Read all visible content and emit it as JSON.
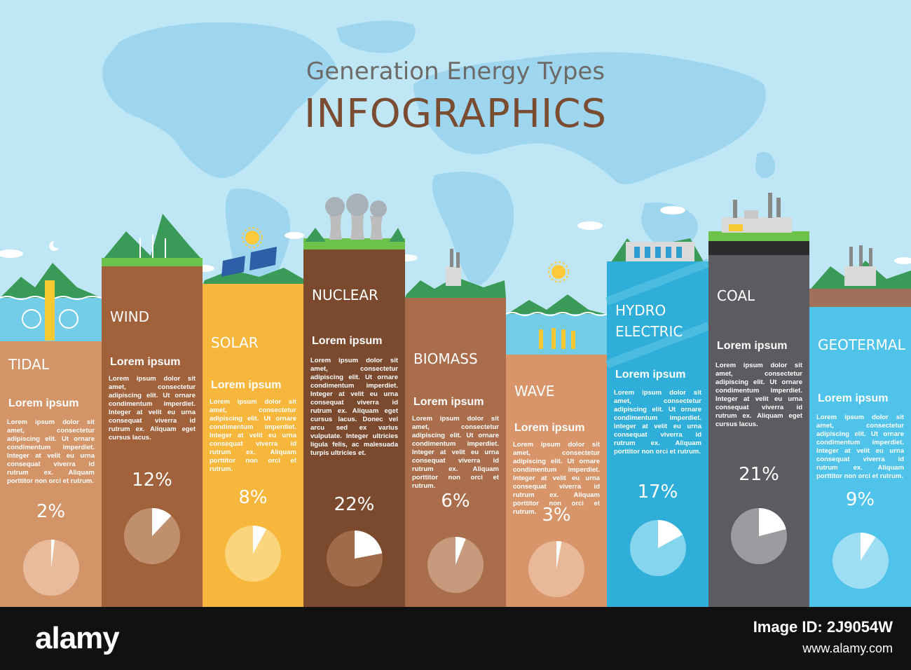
{
  "header": {
    "subtitle": "Generation Energy Types",
    "title": "INFOGRAPHICS"
  },
  "colors": {
    "sky": "#bfe6f5",
    "map": "#9ed6ef",
    "tidal": "#d39468",
    "wind": "#a1613b",
    "solar": "#f6b73c",
    "nuclear": "#7b4a2e",
    "biomass": "#a96d4b",
    "wave": "#d8956a",
    "hydro": "#2eaed8",
    "coal": "#5c5b60",
    "geothermal": "#4fc3ea"
  },
  "columns": [
    {
      "id": "tidal",
      "name": "TIDAL",
      "subtitle": "Lorem ipsum",
      "text": "Lorem ipsum dolor sit amet, consectetur adipiscing elit. Ut ornare condimentum imperdiet. Integer at velit eu urna consequat viverra id rutrum ex. Aliquam porttitor non orci et rutrum.",
      "percent_label": "2%",
      "percent": 2
    },
    {
      "id": "wind",
      "name": "WIND",
      "subtitle": "Lorem ipsum",
      "text": "Lorem ipsum dolor sit amet, consectetur adipiscing elit. Ut ornare condimentum imperdiet. Integer at velit eu urna consequat viverra id rutrum ex. Aliquam eget cursus lacus.",
      "percent_label": "12%",
      "percent": 12
    },
    {
      "id": "solar",
      "name": "SOLAR",
      "subtitle": "Lorem ipsum",
      "text": "Lorem ipsum dolor sit amet, consectetur adipiscing elit. Ut ornare condimentum imperdiet. Integer at velit eu urna consequat viverra id rutrum ex. Aliquam porttitor non orci et rutrum.",
      "percent_label": "8%",
      "percent": 8
    },
    {
      "id": "nuclear",
      "name": "NUCLEAR",
      "subtitle": "Lorem ipsum",
      "text": "Lorem ipsum dolor sit amet, consectetur adipiscing elit. Ut ornare condimentum imperdiet. Integer at velit eu urna consequat viverra id rutrum ex. Aliquam eget cursus lacus. Donec vel arcu sed ex varius vulputate. Integer ultricies ligula felis, ac malesuada turpis ultricies et.",
      "percent_label": "22%",
      "percent": 22
    },
    {
      "id": "biomass",
      "name": "BIOMASS",
      "subtitle": "Lorem ipsum",
      "text": "Lorem ipsum dolor sit amet, consectetur adipiscing elit. Ut ornare condimentum imperdiet. Integer at velit eu urna consequat viverra id rutrum ex. Aliquam porttitor non orci et rutrum.",
      "percent_label": "6%",
      "percent": 6
    },
    {
      "id": "wave",
      "name": "WAVE",
      "subtitle": "Lorem ipsum",
      "text": "Lorem ipsum dolor sit amet, consectetur adipiscing elit. Ut ornare condimentum imperdiet. Integer at velit eu urna consequat viverra id rutrum ex. Aliquam porttitor non orci et rutrum.",
      "percent_label": "3%",
      "percent": 3
    },
    {
      "id": "hydro",
      "name": "HYDRO\nELECTRIC",
      "subtitle": "Lorem ipsum",
      "text": "Lorem ipsum dolor sit amet, consectetur adipiscing elit. Ut ornare condimentum imperdiet. Integer at velit eu urna consequat viverra id rutrum ex. Aliquam porttitor non orci et rutrum.",
      "percent_label": "17%",
      "percent": 17
    },
    {
      "id": "coal",
      "name": "COAL",
      "subtitle": "Lorem ipsum",
      "text": "Lorem ipsum dolor sit amet, consectetur adipiscing elit. Ut ornare condimentum imperdiet. Integer at velit eu urna consequat viverra id rutrum ex. Aliquam eget cursus lacus.",
      "percent_label": "21%",
      "percent": 21
    },
    {
      "id": "geothermal",
      "name": "GEOTERMAL",
      "subtitle": "Lorem ipsum",
      "text": "Lorem ipsum dolor sit amet, consectetur adipiscing elit. Ut ornare condimentum imperdiet. Integer at velit eu urna consequat viverra id rutrum ex. Aliquam porttitor non orci et rutrum.",
      "percent_label": "9%",
      "percent": 9
    }
  ],
  "footer": {
    "logo": "alamy",
    "image_id_label": "Image ID: 2J9054W",
    "site": "www.alamy.com"
  }
}
